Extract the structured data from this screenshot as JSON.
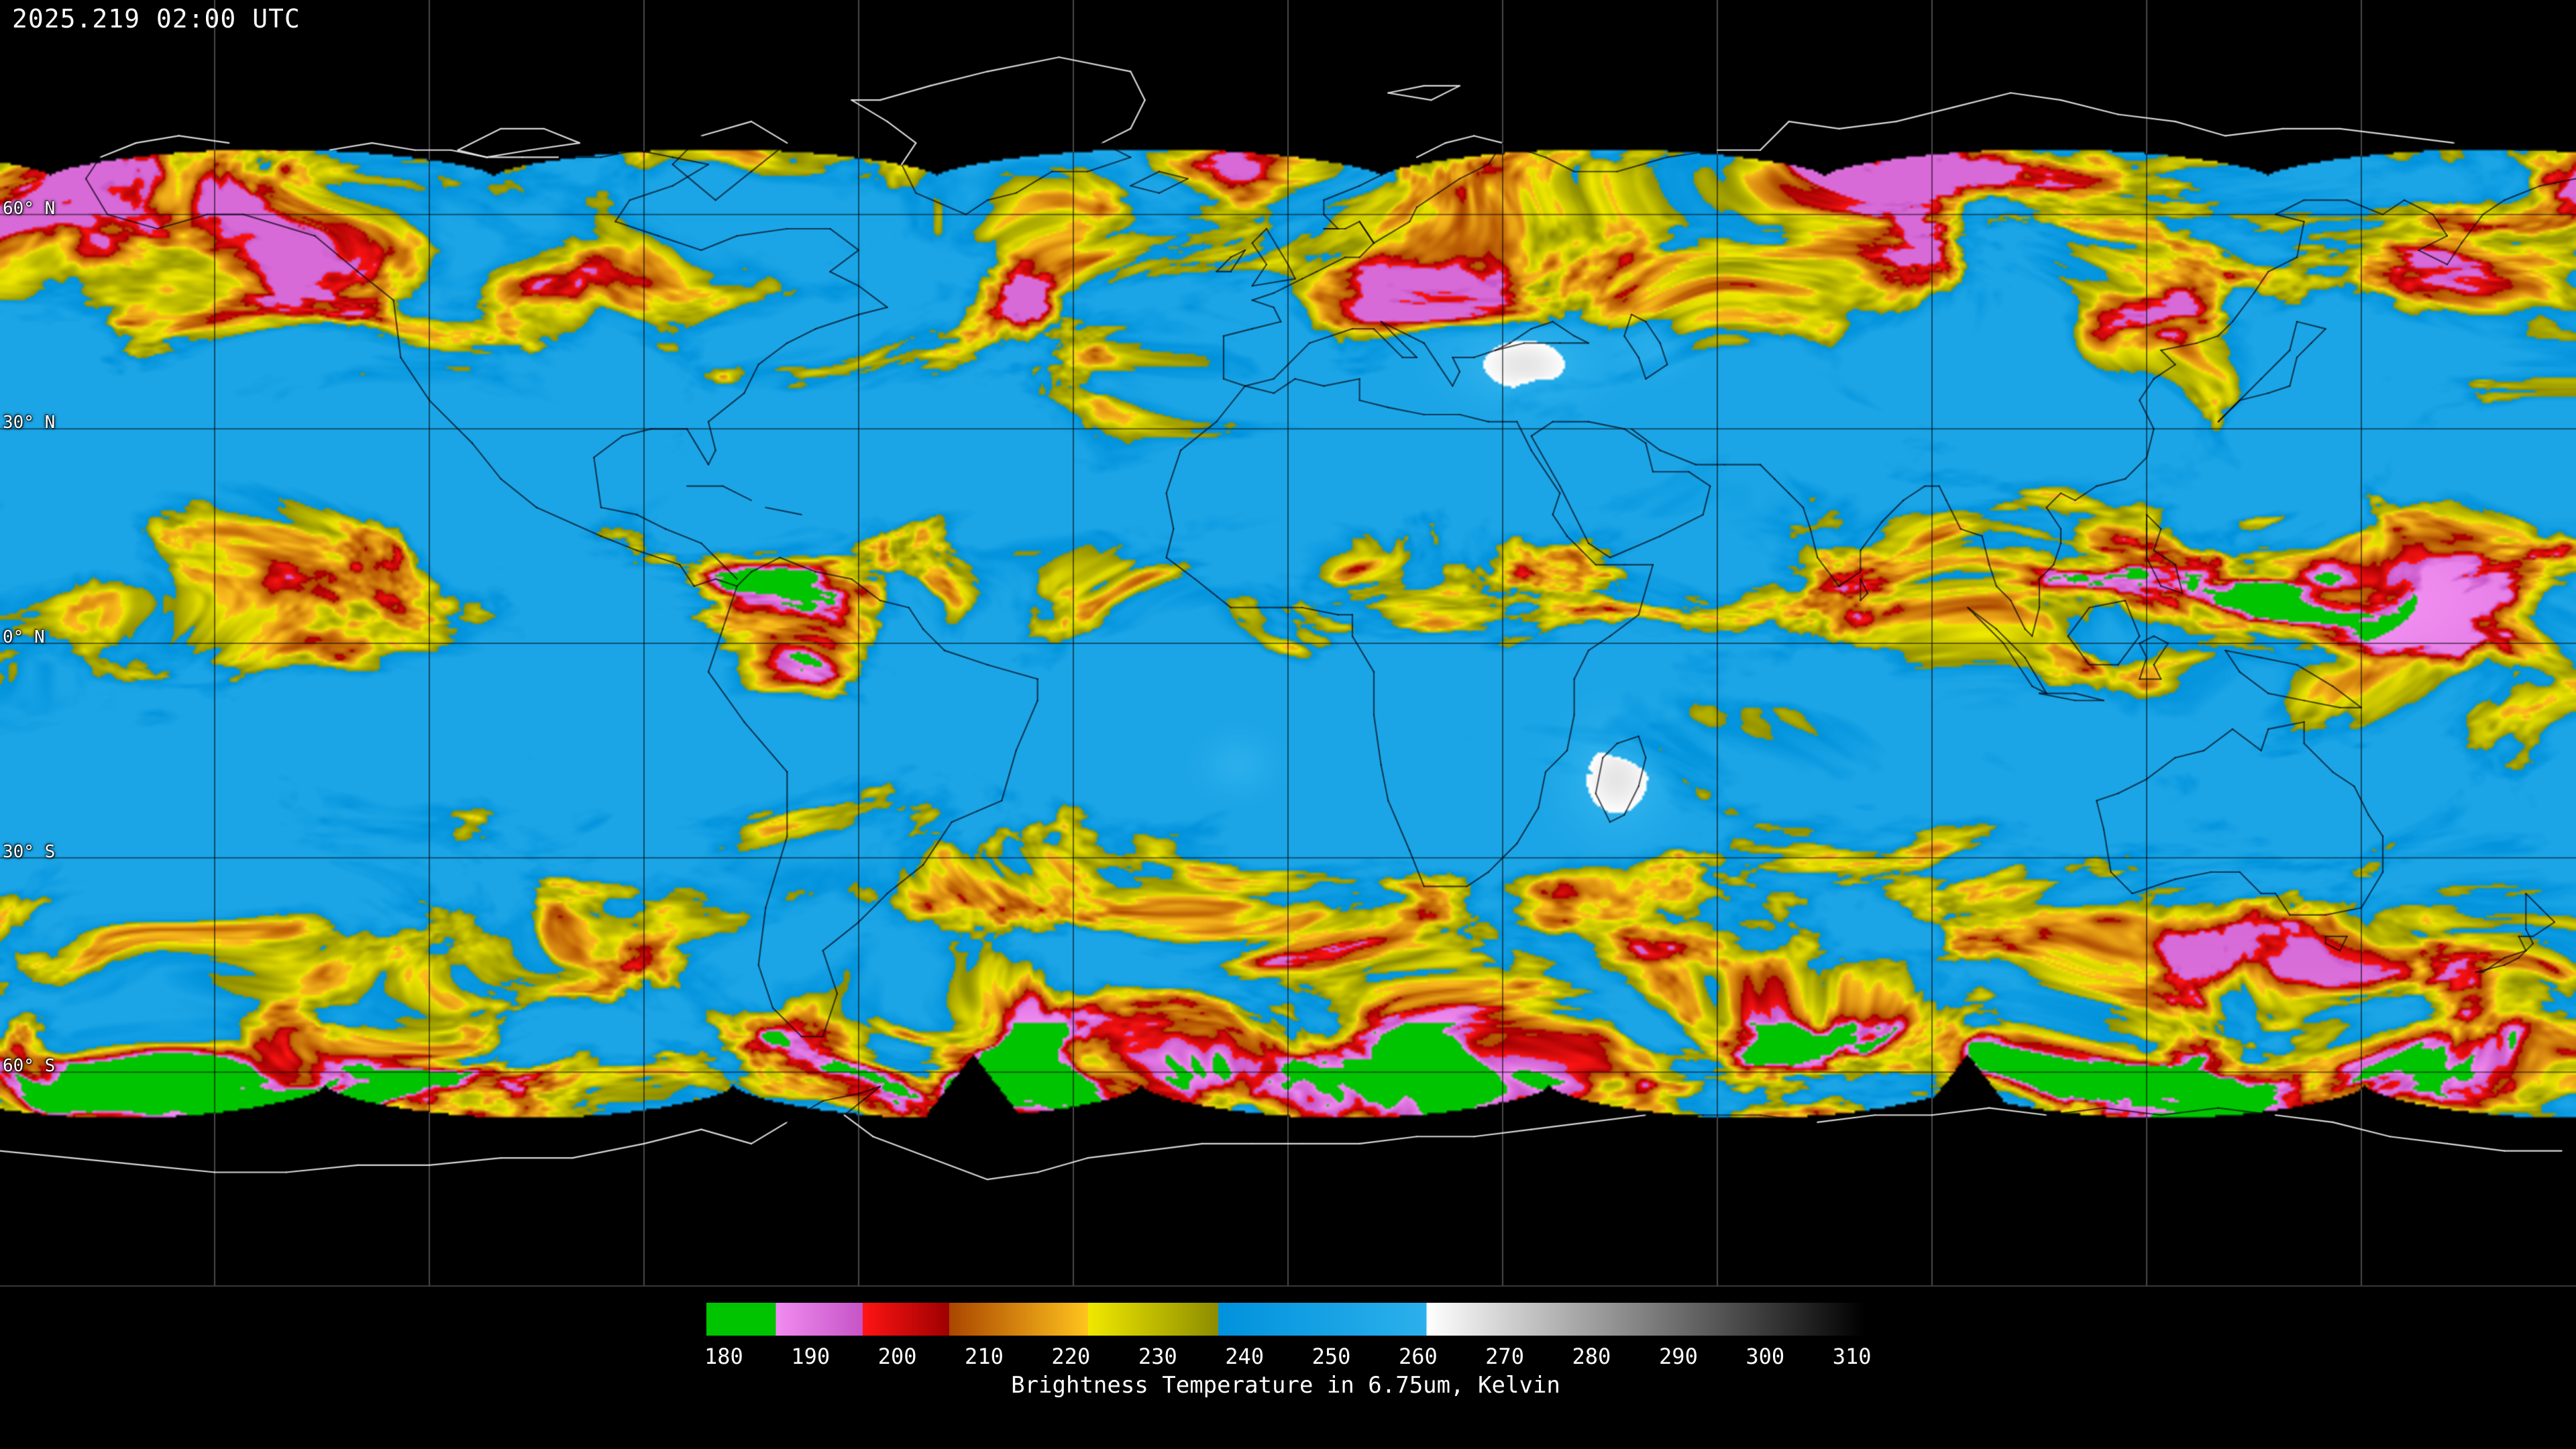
{
  "header": {
    "timestamp": "2025.219 02:00 UTC"
  },
  "map": {
    "projection": "equirectangular",
    "background_color": "#000000",
    "lat_labels": [
      {
        "text": "60° N",
        "lat": 60
      },
      {
        "text": "30° N",
        "lat": 30
      },
      {
        "text": "0° N",
        "lat": 0
      },
      {
        "text": "30° S",
        "lat": -30
      },
      {
        "text": "60° S",
        "lat": -60
      }
    ],
    "grid": {
      "lon_step_deg": 30,
      "lat_step_deg": 30
    }
  },
  "colorbar": {
    "title": "Brightness Temperature in 6.75um, Kelvin",
    "units": "Kelvin",
    "min": 180,
    "max": 310,
    "ticks": [
      "180",
      "190",
      "200",
      "210",
      "220",
      "230",
      "240",
      "250",
      "260",
      "270",
      "280",
      "290",
      "300",
      "310"
    ],
    "segments": [
      {
        "from": 178.0,
        "to": 186.0,
        "start": "#00c400",
        "end": "#00c400"
      },
      {
        "from": 186.0,
        "to": 196.0,
        "start": "#f08cf0",
        "end": "#c654c6"
      },
      {
        "from": 196.0,
        "to": 206.0,
        "start": "#ff1414",
        "end": "#9e0000"
      },
      {
        "from": 206.0,
        "to": 222.0,
        "start": "#aa4600",
        "end": "#ffc41e"
      },
      {
        "from": 222.0,
        "to": 237.0,
        "start": "#f0e800",
        "end": "#8c8c00"
      },
      {
        "from": 237.0,
        "to": 261.0,
        "start": "#0092dc",
        "end": "#2cb0ec"
      },
      {
        "from": 261.0,
        "to": 311.5,
        "start": "#ffffff",
        "end": "#000000"
      }
    ]
  }
}
